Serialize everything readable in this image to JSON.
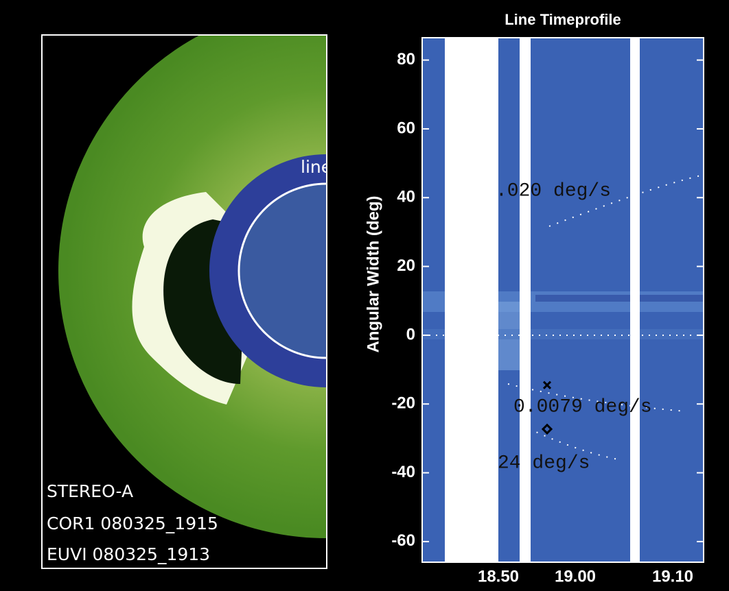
{
  "image_panel": {
    "labels": [
      "STEREO-A",
      "COR1 080325_1915",
      "EUVI 080325_1913"
    ],
    "line_label": "line"
  },
  "chart_data": {
    "type": "heatmap",
    "title": "Line Timeprofile",
    "y_label": "Angular Width (deg)",
    "x_labels": [
      "18.50",
      "19.00",
      "19.10"
    ],
    "ylim": [
      -66,
      86.5
    ],
    "yticks": [
      80,
      60,
      40,
      20,
      0,
      -20,
      -40,
      -60
    ],
    "markers": [
      -14.5,
      -27.3
    ],
    "annotations": [
      ".020 deg/s",
      "0.0079 deg/s",
      "24 deg/s"
    ]
  }
}
